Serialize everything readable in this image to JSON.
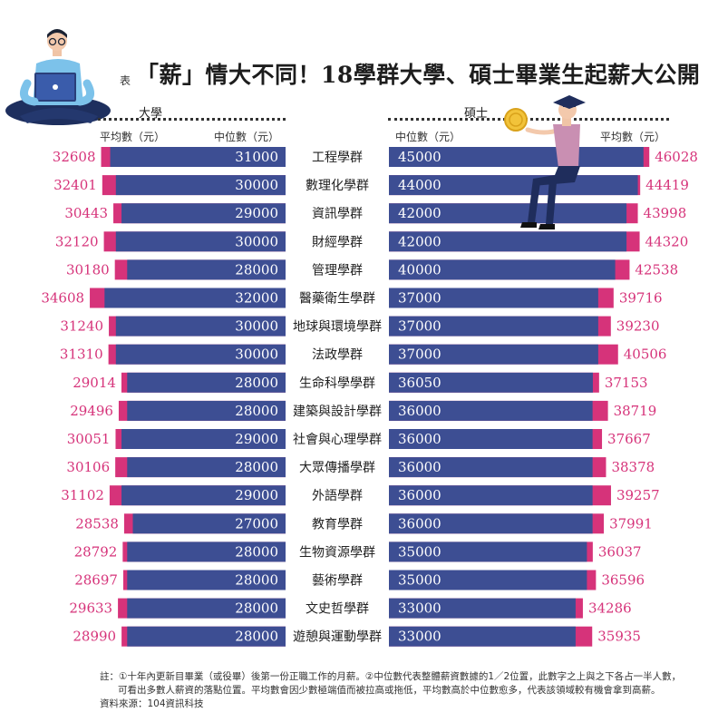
{
  "title": {
    "prefix": "表",
    "main": "「薪」情大不同！18學群大學、碩士畢業生起薪大公開"
  },
  "headers": {
    "bachelor": "大學",
    "master": "碩士",
    "avg_label": "平均數（元）",
    "median_label": "中位數（元）"
  },
  "colors": {
    "median_bar": "#3d4e93",
    "avg_bar": "#d6337a",
    "avg_text": "#d6337a",
    "median_text": "#ffffff",
    "category_text": "#222222"
  },
  "chart_data": {
    "type": "bar",
    "title": "「薪」情大不同！18學群大學、碩士畢業生起薪大公開",
    "xlabel": "",
    "ylabel": "",
    "xlim": [
      0,
      46500
    ],
    "categories": [
      "工程學群",
      "數理化學群",
      "資訊學群",
      "財經學群",
      "管理學群",
      "醫藥衛生學群",
      "地球與環境學群",
      "法政學群",
      "生命科學學群",
      "建築與設計學群",
      "社會與心理學群",
      "大眾傳播學群",
      "外語學群",
      "教育學群",
      "生物資源學群",
      "藝術學群",
      "文史哲學群",
      "遊憩與運動學群"
    ],
    "series": [
      {
        "name": "大學 平均數（元）",
        "values": [
          32608,
          32401,
          30443,
          32120,
          30180,
          34608,
          31240,
          31310,
          29014,
          29496,
          30051,
          30106,
          31102,
          28538,
          28792,
          28697,
          29633,
          28990
        ]
      },
      {
        "name": "大學 中位數（元）",
        "values": [
          31000,
          30000,
          29000,
          30000,
          28000,
          32000,
          30000,
          30000,
          28000,
          28000,
          29000,
          28000,
          29000,
          27000,
          28000,
          28000,
          28000,
          28000
        ]
      },
      {
        "name": "碩士 中位數（元）",
        "values": [
          45000,
          44000,
          42000,
          42000,
          40000,
          37000,
          37000,
          37000,
          36050,
          36000,
          36000,
          36000,
          36000,
          36000,
          35000,
          35000,
          33000,
          33000
        ]
      },
      {
        "name": "碩士 平均數（元）",
        "values": [
          46028,
          44419,
          43998,
          44320,
          42538,
          39716,
          39230,
          40506,
          37153,
          38719,
          37667,
          38378,
          39257,
          37991,
          36037,
          36596,
          34286,
          35935
        ]
      }
    ]
  },
  "footnote": {
    "line1": "註：①十年內更新目畢業（或役畢）後第一份正職工作的月薪。②中位數代表整體薪資數據的1／2位置，此數字之上與之下各占一半人數，",
    "line2": "可看出多數人薪資的落點位置。平均數會因少數極端值而被拉高或拖低，平均數高於中位數愈多，代表該領域較有機會拿到高薪。",
    "source": "資料來源：104資訊科技"
  }
}
